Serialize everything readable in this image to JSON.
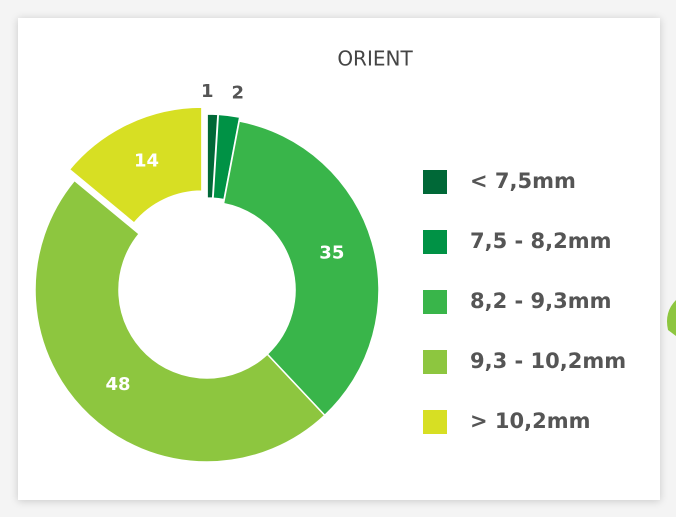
{
  "chart_data": {
    "type": "pie",
    "title": "ORIENT",
    "categories": [
      "< 7,5mm",
      "7,5 - 8,2mm",
      "8,2 - 9,3mm",
      "9,3 - 10,2mm",
      "> 10,2mm"
    ],
    "values": [
      1,
      2,
      35,
      48,
      14
    ],
    "colors": [
      "#006837",
      "#009245",
      "#39b54a",
      "#8dc63f",
      "#d7df23"
    ],
    "donut": true,
    "legend": "right"
  }
}
